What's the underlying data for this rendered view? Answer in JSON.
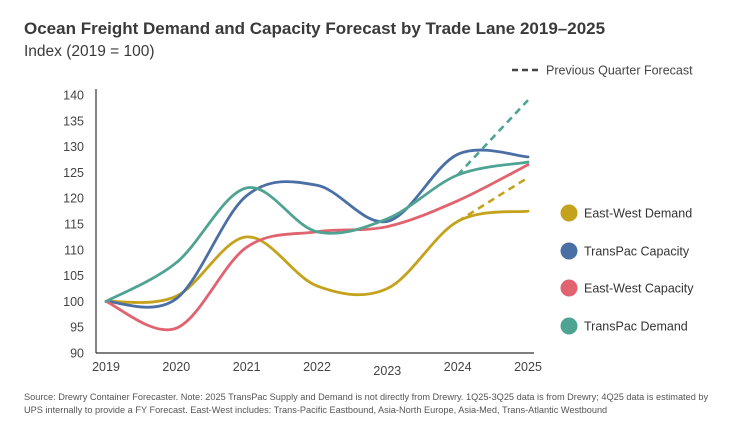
{
  "colors": {
    "east_west_demand": "#c5a21c",
    "transpac_capacity": "#4a6fa5",
    "east_west_capacity": "#e0636f",
    "transpac_demand": "#4fa393",
    "axis": "#333333",
    "tick_text": "#444444"
  },
  "chart_data": {
    "type": "line",
    "title": "Ocean Freight Demand and Capacity Forecast by Trade Lane 2019–2025",
    "subtitle": "Index (2019 = 100)",
    "xlabel": "",
    "ylabel": "",
    "x": [
      2019,
      2020,
      2021,
      2022,
      2023,
      2024,
      2025
    ],
    "x_tick_labels": [
      "2019",
      "2020",
      "2021",
      "2022",
      "2023",
      "2024",
      "2025"
    ],
    "ylim": [
      90,
      140
    ],
    "y_ticks": [
      90,
      95,
      100,
      105,
      110,
      115,
      120,
      125,
      130,
      135,
      140
    ],
    "series": [
      {
        "name": "East-West Demand",
        "color_key": "east_west_demand",
        "points": [
          [
            2019,
            100
          ],
          [
            2020,
            101
          ],
          [
            2021,
            112.5
          ],
          [
            2022,
            103
          ],
          [
            2023,
            102.5
          ],
          [
            2024,
            115.5
          ],
          [
            2025,
            117.5
          ]
        ],
        "forecast_points": [
          [
            2024,
            115.5
          ],
          [
            2025,
            124
          ]
        ]
      },
      {
        "name": "TransPac Capacity",
        "color_key": "transpac_capacity",
        "points": [
          [
            2019,
            100
          ],
          [
            2020,
            100.5
          ],
          [
            2021,
            120.5
          ],
          [
            2022,
            122.5
          ],
          [
            2023,
            115.5
          ],
          [
            2024,
            128.5
          ],
          [
            2025,
            128
          ]
        ],
        "forecast_points": []
      },
      {
        "name": "East-West Capacity",
        "color_key": "east_west_capacity",
        "points": [
          [
            2019,
            100
          ],
          [
            2020,
            94.8
          ],
          [
            2021,
            110.5
          ],
          [
            2022,
            113.5
          ],
          [
            2023,
            114.5
          ],
          [
            2024,
            119.5
          ],
          [
            2025,
            126.5
          ]
        ],
        "forecast_points": []
      },
      {
        "name": "TransPac Demand",
        "color_key": "transpac_demand",
        "points": [
          [
            2019,
            100
          ],
          [
            2020,
            107.5
          ],
          [
            2021,
            122
          ],
          [
            2022,
            113.5
          ],
          [
            2023,
            116
          ],
          [
            2024,
            124.5
          ],
          [
            2025,
            127
          ]
        ],
        "forecast_points": [
          [
            2024,
            124.5
          ],
          [
            2025,
            139
          ]
        ]
      }
    ],
    "legend": {
      "placement": "right",
      "forecast_label": "Previous Quarter Forecast",
      "order": [
        "East-West Demand",
        "TransPac Capacity",
        "East-West Capacity",
        "TransPac Demand"
      ]
    }
  },
  "source_note": "Source: Drewry Container Forecaster. Note: 2025 TransPac Supply and Demand is not directly from Drewry. 1Q25-3Q25 data is from Drewry; 4Q25 data is estimated by UPS internally to provide a FY Forecast. East-West includes: Trans-Pacific Eastbound, Asia-North Europe, Asia-Med, Trans-Atlantic Westbound"
}
